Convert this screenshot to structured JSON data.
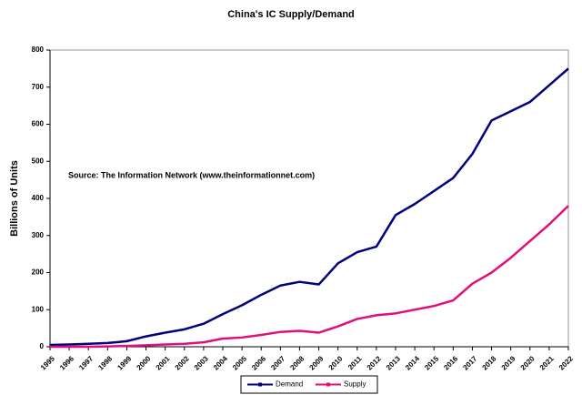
{
  "chart_data": {
    "type": "line",
    "title": "China's IC Supply/Demand",
    "y_label": "Billions of Units",
    "annotation": "Source: The Information Network (www.theinformationnet.com)",
    "x": [
      1995,
      1996,
      1997,
      1998,
      1999,
      2000,
      2001,
      2002,
      2003,
      2004,
      2005,
      2006,
      2007,
      2008,
      2009,
      2010,
      2011,
      2012,
      2013,
      2014,
      2015,
      2016,
      2017,
      2018,
      2019,
      2020,
      2021,
      2022
    ],
    "series": [
      {
        "name": "Demand",
        "color": "#000080",
        "values": [
          5,
          6,
          8,
          10,
          15,
          28,
          38,
          47,
          62,
          88,
          112,
          140,
          165,
          175,
          168,
          225,
          255,
          270,
          355,
          385,
          420,
          455,
          520,
          610,
          635,
          660,
          705,
          750
        ]
      },
      {
        "name": "Supply",
        "color": "#e0107a",
        "values": [
          0,
          0,
          0,
          1,
          2,
          4,
          6,
          8,
          12,
          22,
          25,
          32,
          40,
          43,
          38,
          55,
          75,
          85,
          90,
          100,
          110,
          125,
          170,
          200,
          240,
          285,
          330,
          380
        ]
      }
    ],
    "xlim": [
      1995,
      2022
    ],
    "ylim": [
      0,
      800
    ],
    "yticks": [
      0,
      100,
      200,
      300,
      400,
      500,
      600,
      700,
      800
    ],
    "legend": "bottom"
  }
}
